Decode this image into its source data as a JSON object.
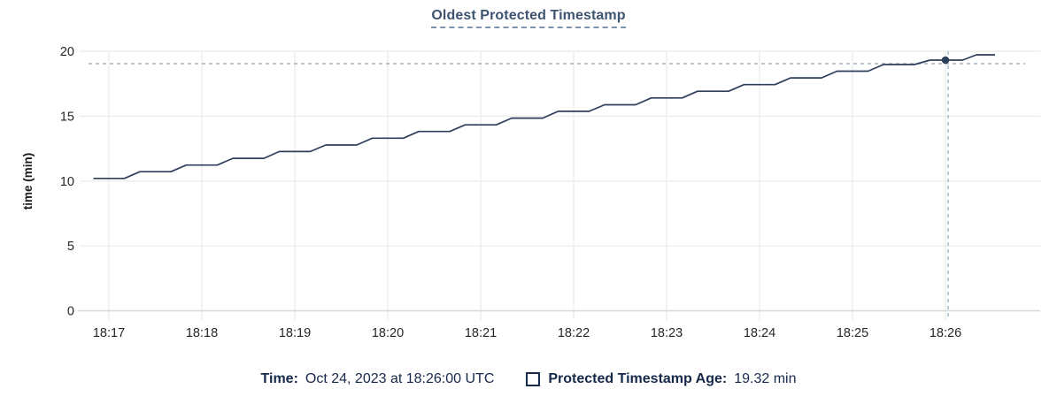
{
  "title": "Oldest Protected Timestamp",
  "colors": {
    "line": "#2e3f5c",
    "title": "#3e5470",
    "legend_text": "#16294a",
    "crosshair": "#9fb3c1",
    "grid": "#ededed",
    "axis": "#d9d9d9",
    "tick_text": "#262626"
  },
  "legend": {
    "time_label": "Time:",
    "time_value": "Oct 24, 2023 at 18:26:00 UTC",
    "metric_label": "Protected Timestamp Age:",
    "metric_value": "19.32 min"
  },
  "chart_data": {
    "type": "line",
    "title": "Oldest Protected Timestamp",
    "xlabel": "",
    "ylabel": "time (min)",
    "ylim": [
      0,
      20
    ],
    "yticks": [
      0,
      5,
      10,
      15,
      20
    ],
    "xticks": [
      "18:17",
      "18:18",
      "18:19",
      "18:20",
      "18:21",
      "18:22",
      "18:23",
      "18:24",
      "18:25",
      "18:26"
    ],
    "x_unit": "seconds relative to 18:17:00 UTC",
    "grid": true,
    "legend_position": "bottom",
    "series": [
      {
        "name": "Protected Timestamp Age",
        "points": [
          [
            -10,
            10.2
          ],
          [
            10,
            10.2
          ],
          [
            20,
            10.72
          ],
          [
            40,
            10.72
          ],
          [
            50,
            11.23
          ],
          [
            70,
            11.23
          ],
          [
            80,
            11.75
          ],
          [
            100,
            11.75
          ],
          [
            110,
            12.27
          ],
          [
            130,
            12.27
          ],
          [
            140,
            12.78
          ],
          [
            160,
            12.78
          ],
          [
            170,
            13.3
          ],
          [
            190,
            13.3
          ],
          [
            200,
            13.82
          ],
          [
            220,
            13.82
          ],
          [
            230,
            14.33
          ],
          [
            250,
            14.33
          ],
          [
            260,
            14.85
          ],
          [
            280,
            14.85
          ],
          [
            290,
            15.37
          ],
          [
            310,
            15.37
          ],
          [
            320,
            15.88
          ],
          [
            340,
            15.88
          ],
          [
            350,
            16.4
          ],
          [
            370,
            16.4
          ],
          [
            380,
            16.92
          ],
          [
            400,
            16.92
          ],
          [
            410,
            17.43
          ],
          [
            430,
            17.43
          ],
          [
            440,
            17.95
          ],
          [
            460,
            17.95
          ],
          [
            470,
            18.47
          ],
          [
            490,
            18.47
          ],
          [
            500,
            18.98
          ],
          [
            520,
            18.98
          ],
          [
            530,
            19.32
          ],
          [
            551,
            19.32
          ],
          [
            560,
            19.73
          ],
          [
            572,
            19.73
          ]
        ]
      }
    ],
    "highlight": {
      "t": 540,
      "x_label": "18:26",
      "value": 19.32,
      "time": "Oct 24, 2023 at 18:26:00 UTC"
    }
  }
}
